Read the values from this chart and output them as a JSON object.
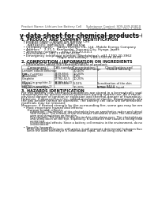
{
  "title": "Safety data sheet for chemical products (SDS)",
  "header_left": "Product Name: Lithium Ion Battery Cell",
  "header_right_line1": "Substance Control: SDS-049-00810",
  "header_right_line2": "Established / Revision: Dec.7.2016",
  "section1_title": "1. PRODUCT AND COMPANY IDENTIFICATION",
  "section1_lines": [
    "  • Product name: Lithium Ion Battery Cell",
    "  • Product code: Cylindrical-type cell",
    "      INR18650U, INR18650L, INR18650A",
    "  • Company name:    Sanyo Electric Co., Ltd., Mobile Energy Company",
    "  • Address:    2-21-1, Kannondai, Tsurumi-City, Hyogo, Japan",
    "  • Telephone number:    +81-1700-20-4111",
    "  • Fax number:  +81-1799-26-4120",
    "  • Emergency telephone number (Weekdating): +81-1700-20-3962",
    "                                    (Night and holiday): +81-1700-26-4120"
  ],
  "section2_title": "2. COMPOSITION / INFORMATION ON INGREDIENTS",
  "section2_intro": "  • Substance or preparation: Preparation",
  "section2_subheader": "  • Information about the chemical nature of product:",
  "table_headers": [
    "Component /",
    "CAS number",
    "Concentration /",
    "Classification and"
  ],
  "table_headers2": [
    "General name",
    "",
    "Concentration range",
    "hazard labeling"
  ],
  "table_rows": [
    [
      "Lithium cobalt dendride\n(LiMn-Co)(PO4)",
      "-",
      "30-40%",
      ""
    ],
    [
      "Iron",
      "7439-89-6",
      "10-20%",
      ""
    ],
    [
      "Aluminium",
      "7429-90-5",
      "2-8%",
      ""
    ],
    [
      "Graphite\n(Metal in graphite-1)\n(ARTW in graphite-1)",
      "17782-42-5\n17789-64-20",
      "10-20%",
      ""
    ],
    [
      "Copper",
      "7440-50-8",
      "5-10%",
      "Sensitization of the skin\ngroup R42.2"
    ],
    [
      "Organic electrolyte",
      "-",
      "10-20%",
      "Inflammable liquid"
    ]
  ],
  "section3_title": "3. HAZARDS IDENTIFICATION",
  "section3_para1": [
    "For this battery cell, chemical substances are stored in a hermetically sealed metal case, designed to withstand",
    "temperatures by electro-electro-processes during normal use. As a result, during normal use, there is no",
    "physical danger of ignition or explosion and thermal-danger of hazardous materials leakage."
  ],
  "section3_para2": [
    "However, if exposed to a fire, added mechanical shocks, decomposed, when electro without dry misuse,",
    "the gas beside cannot be operated. The battery cell case will be breached or fire-patterns. Hazardous",
    "materials may be released."
  ],
  "section3_para3": "Moreover, if heated strongly by the surrounding fire, some gas may be emitted.",
  "section3_hazards_title": "  • Most important hazard and effects:",
  "section3_human_title": "      Human health effects:",
  "section3_human_lines": [
    "          Inhalation: The release of the electrolyte has an anesthetics action and stimulates a respiratory tract.",
    "          Skin contact: The release of the electrolyte stimulates a skin. The electrolyte skin contact causes a",
    "          sore and stimulation on the skin.",
    "          Eye contact: The release of the electrolyte stimulates eyes. The electrolyte eye contact causes a sore",
    "          and stimulation on the eye. Especially, a substance that causes a strong inflammation of the eye is",
    "          contained.",
    "          Environmental effects: Since a battery cell remains in the environment, do not throw out it into the",
    "          environment."
  ],
  "section3_specific_title": "  • Specific hazards:",
  "section3_specific_lines": [
    "      If the electrolyte contacts with water, it will generate detrimental hydrogen fluoride.",
    "      Since the used electrolyte is inflammable liquid, do not bring close to fire."
  ],
  "bg_color": "#ffffff",
  "title_fontsize": 5.5,
  "section_fontsize": 3.5,
  "body_fontsize": 3.0,
  "header_fontsize": 2.8,
  "small_fontsize": 2.6
}
